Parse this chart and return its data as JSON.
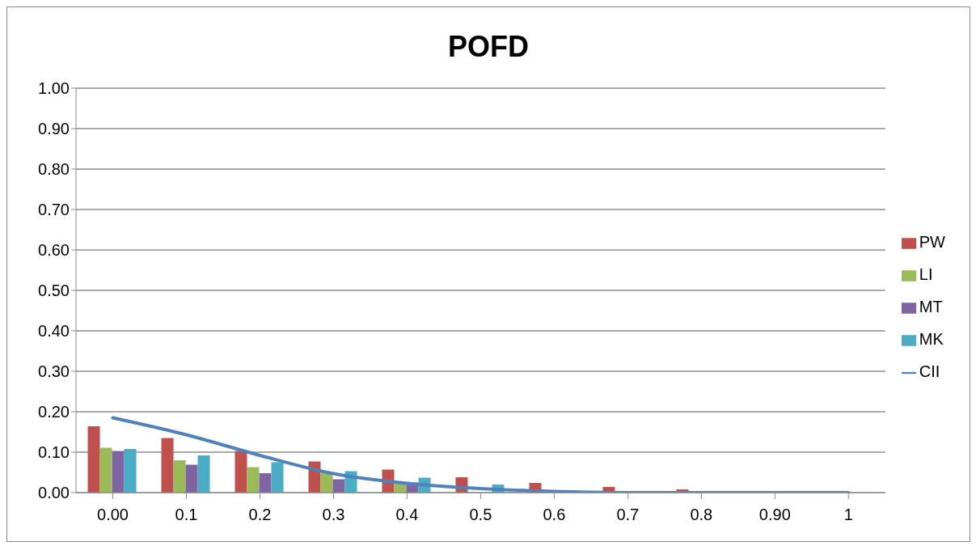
{
  "chart_data": {
    "type": "bar",
    "title": "POFD",
    "categories": [
      "0.00",
      "0.1",
      "0.2",
      "0.3",
      "0.4",
      "0.5",
      "0.6",
      "0.7",
      "0.8",
      "0.90",
      "1"
    ],
    "series": [
      {
        "name": "PW",
        "color": "#c0504d",
        "values": [
          0.164,
          0.135,
          0.103,
          0.077,
          0.057,
          0.038,
          0.024,
          0.014,
          0.008,
          0.002,
          0.001
        ]
      },
      {
        "name": "LI",
        "color": "#9bbb59",
        "values": [
          0.111,
          0.08,
          0.063,
          0.05,
          0.025,
          null,
          null,
          0,
          0,
          0,
          0
        ]
      },
      {
        "name": "MT",
        "color": "#8064a2",
        "values": [
          0.103,
          0.069,
          0.048,
          0.033,
          0.025,
          null,
          0.002,
          0,
          0,
          0,
          0
        ]
      },
      {
        "name": "MK",
        "color": "#4bacc6",
        "values": [
          0.108,
          0.092,
          0.075,
          0.053,
          0.037,
          0.02,
          0.002,
          0,
          0,
          0,
          0
        ]
      },
      {
        "name": "CII",
        "type": "line",
        "color": "#4f81bd",
        "values": [
          0.185,
          0.143,
          0.092,
          0.047,
          0.023,
          0.01,
          0.003,
          0,
          0,
          0,
          0
        ]
      }
    ],
    "ylim": [
      0,
      1
    ],
    "yticks": [
      {
        "value": 0,
        "label": "0.00"
      },
      {
        "value": 0.1,
        "label": "0.10"
      },
      {
        "value": 0.2,
        "label": "0.20"
      },
      {
        "value": 0.3,
        "label": "0.30"
      },
      {
        "value": 0.4,
        "label": "0.40"
      },
      {
        "value": 0.5,
        "label": "0.50"
      },
      {
        "value": 0.6,
        "label": "0.60"
      },
      {
        "value": 0.7,
        "label": "0.70"
      },
      {
        "value": 0.8,
        "label": "0.80"
      },
      {
        "value": 0.9,
        "label": "0.90"
      },
      {
        "value": 1,
        "label": "1.00"
      }
    ],
    "grid": "y",
    "legend": "right",
    "marker": "none"
  }
}
